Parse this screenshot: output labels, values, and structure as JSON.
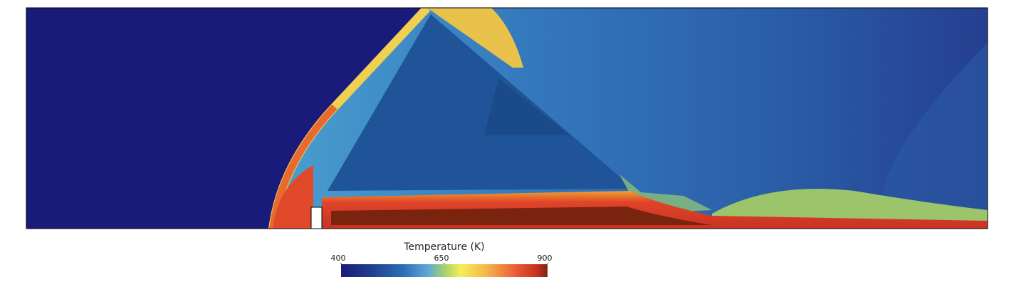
{
  "colorbar": {
    "title": "Temperature (K)",
    "range": [
      400,
      900
    ],
    "ticks": [
      400,
      650,
      900
    ]
  }
}
